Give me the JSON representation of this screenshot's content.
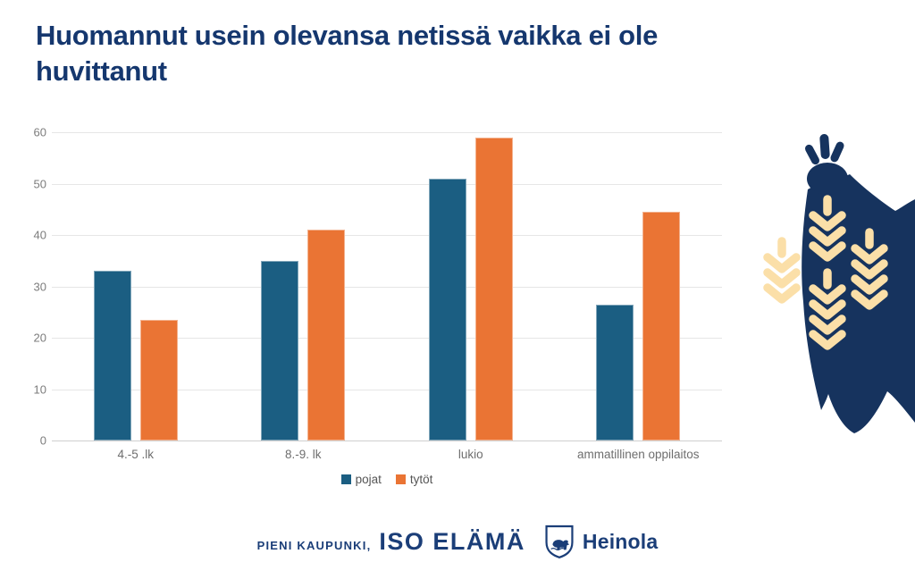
{
  "title": "Huomannut usein olevansa netissä vaikka ei ole huvittanut",
  "chart_data": {
    "type": "bar",
    "title": "Huomannut usein olevansa netissä vaikka ei ole huvittanut",
    "categories": [
      "4.-5 .lk",
      "8.-9. lk",
      "lukio",
      "ammatillinen oppilaitos"
    ],
    "series": [
      {
        "name": "pojat",
        "color": "#1b5e82",
        "values": [
          33,
          35,
          51,
          26.5
        ]
      },
      {
        "name": "tytöt",
        "color": "#ea7434",
        "values": [
          23.5,
          41,
          59,
          44.5
        ]
      }
    ],
    "xlabel": "",
    "ylabel": "",
    "ylim": [
      0,
      60
    ],
    "yticks": [
      0,
      10,
      20,
      30,
      40,
      50,
      60
    ],
    "grid": true,
    "legend_position": "bottom"
  },
  "footer": {
    "tagline_small": "PIENI KAUPUNKI,",
    "tagline_large": "ISO ELÄMÄ",
    "brand": "Heinola"
  },
  "decor": {
    "description": "navy bird-plant silhouette with wheat ears",
    "navy": "#16335e",
    "wheat": "#fbdfa8"
  },
  "colors": {
    "title_navy": "#15376e",
    "bar_blue": "#1b5e82",
    "bar_orange": "#ea7434",
    "gridline": "#e6e6e6",
    "axis_text": "#7c7c7c"
  }
}
